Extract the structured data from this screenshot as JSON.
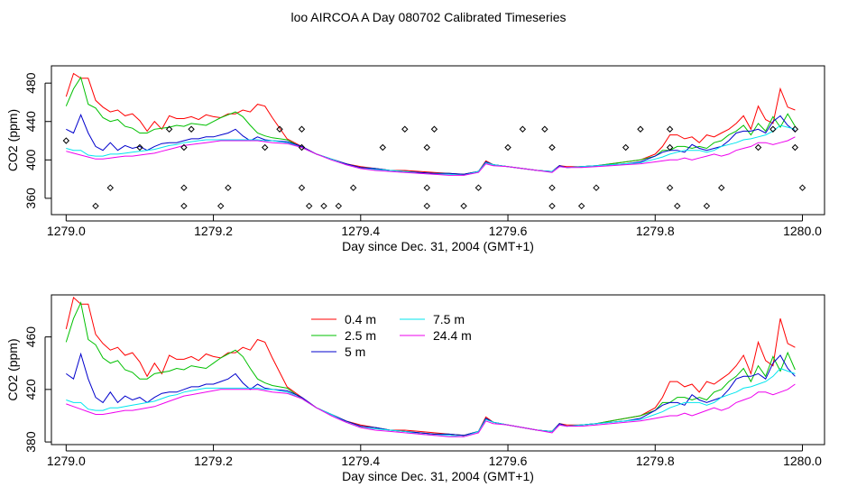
{
  "title": "loo AIRCOA A  Day 080702  Calibrated Timeseries",
  "colors": {
    "0.4 m": "#ff0000",
    "2.5 m": "#00c000",
    "5 m": "#0000cc",
    "7.5 m": "#00e5ee",
    "24.4 m": "#ee00ee",
    "points": "#000000"
  },
  "chart_data": [
    {
      "type": "line",
      "panel": "top",
      "title": "",
      "xlabel": "Day since Dec. 31, 2004 (GMT+1)",
      "ylabel": "CO2 (ppm)",
      "xlim": [
        1278.98,
        1280.03
      ],
      "ylim": [
        343,
        498
      ],
      "xticks": [
        1279.0,
        1279.2,
        1279.4,
        1279.6,
        1279.8,
        1280.0
      ],
      "xtick_labels": [
        "1279.0",
        "1279.2",
        "1279.4",
        "1279.6",
        "1279.8",
        "1280.0"
      ],
      "yticks": [
        360,
        400,
        440,
        480
      ],
      "ytick_labels": [
        "360",
        "400",
        "440",
        "480"
      ],
      "series_ref": "shared",
      "points_ref": "shared"
    },
    {
      "type": "line",
      "panel": "bottom",
      "title": "",
      "xlabel": "Day since Dec. 31, 2004 (GMT+1)",
      "ylabel": "CO2 (ppm)",
      "xlim": [
        1278.98,
        1280.03
      ],
      "ylim": [
        378,
        492
      ],
      "xticks": [
        1279.0,
        1279.2,
        1279.4,
        1279.6,
        1279.8,
        1280.0
      ],
      "xtick_labels": [
        "1279.0",
        "1279.2",
        "1279.4",
        "1279.6",
        "1279.8",
        "1280.0"
      ],
      "yticks": [
        380,
        420,
        460
      ],
      "ytick_labels": [
        "380",
        "420",
        "460"
      ],
      "legend": [
        "0.4 m",
        "2.5 m",
        "5 m",
        "7.5 m",
        "24.4 m"
      ],
      "legend_position": "top-left",
      "series_ref": "shared"
    }
  ],
  "series": [
    {
      "name": "0.4 m",
      "x": [
        1279.0,
        1279.01,
        1279.02,
        1279.03,
        1279.04,
        1279.05,
        1279.06,
        1279.07,
        1279.08,
        1279.09,
        1279.1,
        1279.11,
        1279.12,
        1279.13,
        1279.14,
        1279.15,
        1279.16,
        1279.17,
        1279.18,
        1279.19,
        1279.2,
        1279.21,
        1279.22,
        1279.23,
        1279.24,
        1279.25,
        1279.26,
        1279.27,
        1279.28,
        1279.3,
        1279.32,
        1279.34,
        1279.36,
        1279.38,
        1279.4,
        1279.42,
        1279.44,
        1279.46,
        1279.48,
        1279.5,
        1279.52,
        1279.54,
        1279.56,
        1279.57,
        1279.58,
        1279.6,
        1279.62,
        1279.64,
        1279.66,
        1279.67,
        1279.68,
        1279.7,
        1279.72,
        1279.74,
        1279.76,
        1279.78,
        1279.8,
        1279.81,
        1279.82,
        1279.83,
        1279.84,
        1279.85,
        1279.86,
        1279.87,
        1279.88,
        1279.89,
        1279.9,
        1279.91,
        1279.92,
        1279.93,
        1279.94,
        1279.95,
        1279.96,
        1279.97,
        1279.98,
        1279.99
      ],
      "y": [
        466,
        490,
        485,
        485,
        462,
        455,
        450,
        452,
        446,
        448,
        441,
        430,
        440,
        432,
        446,
        443,
        443,
        445,
        442,
        447,
        445,
        444,
        448,
        448,
        452,
        450,
        458,
        456,
        444,
        422,
        414,
        406,
        401,
        396,
        393,
        391,
        389,
        389,
        388,
        387,
        386,
        385,
        388,
        399,
        395,
        393,
        391,
        389,
        388,
        394,
        393,
        393,
        394,
        396,
        398,
        400,
        406,
        414,
        426,
        426,
        422,
        424,
        418,
        426,
        424,
        428,
        432,
        438,
        446,
        432,
        456,
        442,
        438,
        474,
        455,
        452
      ]
    },
    {
      "name": "2.5 m",
      "x": [
        1279.0,
        1279.01,
        1279.02,
        1279.03,
        1279.04,
        1279.05,
        1279.06,
        1279.07,
        1279.08,
        1279.09,
        1279.1,
        1279.11,
        1279.12,
        1279.13,
        1279.14,
        1279.15,
        1279.16,
        1279.17,
        1279.18,
        1279.19,
        1279.2,
        1279.21,
        1279.22,
        1279.23,
        1279.24,
        1279.25,
        1279.26,
        1279.27,
        1279.28,
        1279.3,
        1279.32,
        1279.34,
        1279.36,
        1279.38,
        1279.4,
        1279.42,
        1279.44,
        1279.46,
        1279.48,
        1279.5,
        1279.52,
        1279.54,
        1279.56,
        1279.57,
        1279.58,
        1279.6,
        1279.62,
        1279.64,
        1279.66,
        1279.67,
        1279.68,
        1279.7,
        1279.72,
        1279.74,
        1279.76,
        1279.78,
        1279.8,
        1279.81,
        1279.82,
        1279.83,
        1279.84,
        1279.85,
        1279.86,
        1279.87,
        1279.88,
        1279.89,
        1279.9,
        1279.91,
        1279.92,
        1279.93,
        1279.94,
        1279.95,
        1279.96,
        1279.97,
        1279.98,
        1279.99
      ],
      "y": [
        456,
        474,
        486,
        458,
        454,
        444,
        440,
        442,
        435,
        433,
        428,
        428,
        432,
        433,
        434,
        436,
        435,
        438,
        437,
        436,
        440,
        444,
        447,
        450,
        445,
        436,
        428,
        425,
        423,
        421,
        413,
        406,
        401,
        396,
        392,
        391,
        389,
        388,
        387,
        386,
        386,
        385,
        388,
        398,
        395,
        393,
        391,
        389,
        388,
        394,
        392,
        393,
        394,
        396,
        398,
        400,
        404,
        410,
        410,
        414,
        414,
        412,
        414,
        412,
        418,
        420,
        426,
        430,
        436,
        426,
        438,
        430,
        445,
        434,
        448,
        435
      ]
    },
    {
      "name": "5 m",
      "x": [
        1279.0,
        1279.01,
        1279.02,
        1279.03,
        1279.04,
        1279.05,
        1279.06,
        1279.07,
        1279.08,
        1279.09,
        1279.1,
        1279.11,
        1279.12,
        1279.13,
        1279.14,
        1279.15,
        1279.16,
        1279.17,
        1279.18,
        1279.19,
        1279.2,
        1279.21,
        1279.22,
        1279.23,
        1279.24,
        1279.25,
        1279.26,
        1279.27,
        1279.28,
        1279.3,
        1279.32,
        1279.34,
        1279.36,
        1279.38,
        1279.4,
        1279.42,
        1279.44,
        1279.46,
        1279.48,
        1279.5,
        1279.52,
        1279.54,
        1279.56,
        1279.57,
        1279.58,
        1279.6,
        1279.62,
        1279.64,
        1279.66,
        1279.67,
        1279.68,
        1279.7,
        1279.72,
        1279.74,
        1279.76,
        1279.78,
        1279.8,
        1279.81,
        1279.82,
        1279.83,
        1279.84,
        1279.85,
        1279.86,
        1279.87,
        1279.88,
        1279.89,
        1279.9,
        1279.91,
        1279.92,
        1279.93,
        1279.94,
        1279.95,
        1279.96,
        1279.97,
        1279.98,
        1279.99
      ],
      "y": [
        432,
        428,
        447,
        428,
        414,
        410,
        418,
        410,
        415,
        412,
        414,
        410,
        414,
        417,
        418,
        418,
        420,
        422,
        422,
        424,
        424,
        426,
        428,
        432,
        425,
        420,
        424,
        421,
        420,
        419,
        414,
        406,
        401,
        396,
        392,
        391,
        389,
        388,
        387,
        386,
        386,
        385,
        388,
        398,
        395,
        393,
        391,
        389,
        388,
        394,
        392,
        393,
        394,
        395,
        396,
        398,
        404,
        408,
        410,
        410,
        408,
        416,
        412,
        410,
        412,
        414,
        420,
        428,
        430,
        430,
        432,
        428,
        440,
        446,
        436,
        430
      ]
    },
    {
      "name": "7.5 m",
      "x": [
        1279.0,
        1279.01,
        1279.02,
        1279.03,
        1279.04,
        1279.05,
        1279.06,
        1279.07,
        1279.08,
        1279.09,
        1279.1,
        1279.11,
        1279.12,
        1279.13,
        1279.14,
        1279.15,
        1279.16,
        1279.17,
        1279.18,
        1279.19,
        1279.2,
        1279.21,
        1279.22,
        1279.23,
        1279.24,
        1279.25,
        1279.26,
        1279.27,
        1279.28,
        1279.3,
        1279.32,
        1279.34,
        1279.36,
        1279.38,
        1279.4,
        1279.42,
        1279.44,
        1279.46,
        1279.48,
        1279.5,
        1279.52,
        1279.54,
        1279.56,
        1279.57,
        1279.58,
        1279.6,
        1279.62,
        1279.64,
        1279.66,
        1279.67,
        1279.68,
        1279.7,
        1279.72,
        1279.74,
        1279.76,
        1279.78,
        1279.8,
        1279.81,
        1279.82,
        1279.83,
        1279.84,
        1279.85,
        1279.86,
        1279.87,
        1279.88,
        1279.89,
        1279.9,
        1279.91,
        1279.92,
        1279.93,
        1279.94,
        1279.95,
        1279.96,
        1279.97,
        1279.98,
        1279.99
      ],
      "y": [
        412,
        410,
        410,
        405,
        404,
        404,
        406,
        406,
        407,
        408,
        409,
        410,
        411,
        413,
        415,
        416,
        418,
        419,
        420,
        421,
        421,
        421,
        421,
        421,
        421,
        421,
        421,
        420,
        420,
        418,
        413,
        406,
        401,
        395,
        391,
        390,
        389,
        388,
        386,
        385,
        385,
        384,
        388,
        397,
        395,
        393,
        391,
        389,
        388,
        393,
        392,
        393,
        394,
        395,
        396,
        397,
        401,
        403,
        406,
        408,
        410,
        410,
        410,
        408,
        410,
        414,
        416,
        418,
        421,
        422,
        424,
        426,
        430,
        436,
        434,
        432
      ]
    },
    {
      "name": "24.4 m",
      "x": [
        1279.0,
        1279.01,
        1279.02,
        1279.03,
        1279.04,
        1279.05,
        1279.06,
        1279.07,
        1279.08,
        1279.09,
        1279.1,
        1279.11,
        1279.12,
        1279.13,
        1279.14,
        1279.15,
        1279.16,
        1279.17,
        1279.18,
        1279.19,
        1279.2,
        1279.21,
        1279.22,
        1279.23,
        1279.24,
        1279.25,
        1279.26,
        1279.27,
        1279.28,
        1279.3,
        1279.32,
        1279.34,
        1279.36,
        1279.38,
        1279.4,
        1279.42,
        1279.44,
        1279.46,
        1279.48,
        1279.5,
        1279.52,
        1279.54,
        1279.56,
        1279.57,
        1279.58,
        1279.6,
        1279.62,
        1279.64,
        1279.66,
        1279.67,
        1279.68,
        1279.7,
        1279.72,
        1279.74,
        1279.76,
        1279.78,
        1279.8,
        1279.81,
        1279.82,
        1279.83,
        1279.84,
        1279.85,
        1279.86,
        1279.87,
        1279.88,
        1279.89,
        1279.9,
        1279.91,
        1279.92,
        1279.93,
        1279.94,
        1279.95,
        1279.96,
        1279.97,
        1279.98,
        1279.99
      ],
      "y": [
        409,
        407,
        405,
        403,
        401,
        401,
        402,
        403,
        404,
        404,
        405,
        406,
        407,
        409,
        411,
        413,
        415,
        416,
        417,
        418,
        419,
        420,
        420,
        420,
        420,
        420,
        420,
        419,
        418,
        417,
        413,
        406,
        400,
        395,
        391,
        389,
        388,
        387,
        386,
        385,
        384,
        384,
        387,
        396,
        394,
        393,
        391,
        389,
        387,
        393,
        392,
        392,
        393,
        394,
        395,
        396,
        398,
        399,
        400,
        400,
        402,
        400,
        402,
        404,
        406,
        404,
        406,
        410,
        412,
        414,
        418,
        418,
        416,
        418,
        420,
        424
      ]
    }
  ],
  "points": {
    "name": "points",
    "x": [
      1279.0,
      1279.04,
      1279.06,
      1279.1,
      1279.14,
      1279.16,
      1279.16,
      1279.16,
      1279.17,
      1279.21,
      1279.22,
      1279.27,
      1279.29,
      1279.32,
      1279.32,
      1279.32,
      1279.33,
      1279.35,
      1279.37,
      1279.39,
      1279.43,
      1279.46,
      1279.49,
      1279.49,
      1279.49,
      1279.5,
      1279.54,
      1279.56,
      1279.6,
      1279.62,
      1279.65,
      1279.66,
      1279.66,
      1279.66,
      1279.7,
      1279.72,
      1279.76,
      1279.78,
      1279.82,
      1279.82,
      1279.82,
      1279.83,
      1279.87,
      1279.89,
      1279.94,
      1279.96,
      1279.99,
      1279.99,
      1280.0
    ],
    "y": [
      420,
      352,
      371,
      413,
      432,
      413,
      371,
      352,
      432,
      352,
      371,
      413,
      432,
      432,
      413,
      371,
      352,
      352,
      352,
      371,
      413,
      432,
      352,
      371,
      413,
      432,
      352,
      371,
      413,
      432,
      432,
      413,
      371,
      352,
      352,
      371,
      413,
      432,
      413,
      371,
      432,
      352,
      352,
      371,
      413,
      432,
      432,
      413,
      371
    ]
  }
}
